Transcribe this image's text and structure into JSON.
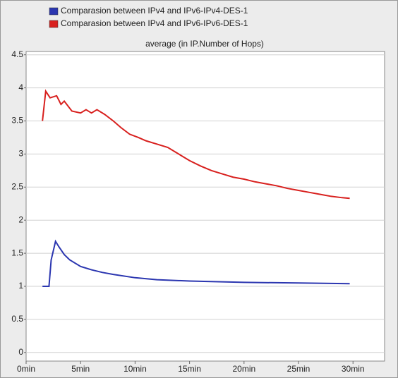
{
  "chart_data": {
    "type": "line",
    "subtitle": "average (in IP.Number of Hops)",
    "xlim": [
      0,
      32.9
    ],
    "ylim": [
      -0.13,
      4.55
    ],
    "xticks": [
      {
        "value": 0,
        "label": "0min"
      },
      {
        "value": 5,
        "label": "5min"
      },
      {
        "value": 10,
        "label": "10min"
      },
      {
        "value": 15,
        "label": "15min"
      },
      {
        "value": 20,
        "label": "20min"
      },
      {
        "value": 25,
        "label": "25min"
      },
      {
        "value": 30,
        "label": "30min"
      }
    ],
    "yticks": [
      0,
      0.5,
      1,
      1.5,
      2,
      2.5,
      3,
      3.5,
      4,
      4.5
    ],
    "grid": true,
    "series": [
      {
        "name": "Comparasion between IPv4 and IPv6-IPv4-DES-1",
        "color": "#2b36b0",
        "x": [
          1.5,
          2.1,
          2.3,
          2.7,
          3.0,
          3.5,
          4,
          5,
          6,
          7,
          8,
          10,
          12,
          15,
          20,
          25,
          29.7
        ],
        "values": [
          1.0,
          1.0,
          1.4,
          1.68,
          1.6,
          1.48,
          1.4,
          1.3,
          1.25,
          1.21,
          1.18,
          1.13,
          1.1,
          1.08,
          1.06,
          1.05,
          1.04
        ]
      },
      {
        "name": "Comparasion between IPv4 and IPv6-IPv6-DES-1",
        "color": "#d8201e",
        "x": [
          1.5,
          1.8,
          2.2,
          2.8,
          3.2,
          3.5,
          4.2,
          5,
          5.5,
          6,
          6.5,
          7.2,
          8,
          8.7,
          9.5,
          10.3,
          11,
          12,
          13,
          14,
          15,
          16,
          17,
          18,
          19,
          20,
          21,
          22,
          23,
          24,
          25,
          26,
          27,
          28,
          29,
          29.7
        ],
        "values": [
          3.5,
          3.95,
          3.85,
          3.88,
          3.75,
          3.8,
          3.65,
          3.62,
          3.67,
          3.62,
          3.67,
          3.6,
          3.5,
          3.4,
          3.3,
          3.25,
          3.2,
          3.15,
          3.1,
          3.0,
          2.9,
          2.82,
          2.75,
          2.7,
          2.65,
          2.62,
          2.58,
          2.55,
          2.52,
          2.48,
          2.45,
          2.42,
          2.39,
          2.36,
          2.34,
          2.33
        ]
      }
    ]
  }
}
